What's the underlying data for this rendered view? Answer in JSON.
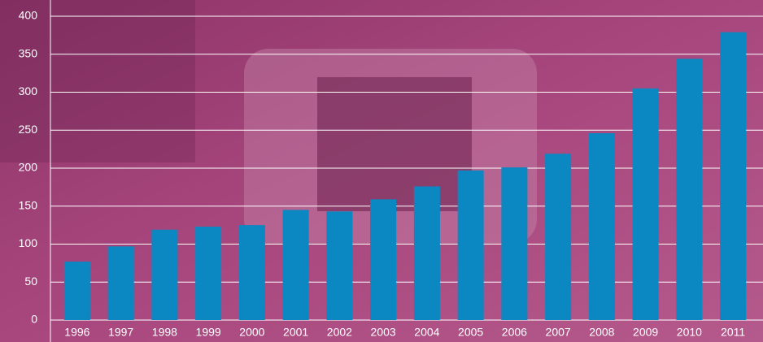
{
  "chart_data": {
    "type": "bar",
    "categories": [
      "1996",
      "1997",
      "1998",
      "1999",
      "2000",
      "2001",
      "2002",
      "2003",
      "2004",
      "2005",
      "2006",
      "2007",
      "2008",
      "2009",
      "2010",
      "2011"
    ],
    "values": [
      77,
      97,
      119,
      123,
      125,
      145,
      143,
      159,
      176,
      197,
      201,
      219,
      246,
      305,
      344,
      379
    ],
    "color": "#0b87c1",
    "ylim": [
      0,
      400
    ],
    "yticks": [
      0,
      50,
      100,
      150,
      200,
      250,
      300,
      350,
      400
    ],
    "grid": true
  }
}
